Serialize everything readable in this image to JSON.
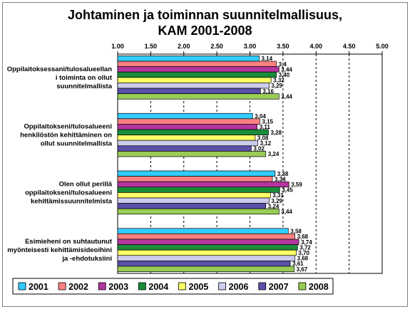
{
  "chart_data": {
    "type": "bar",
    "orientation": "horizontal",
    "title_lines": [
      "Johtaminen ja toiminnan suunnitelmallisuus,",
      "KAM 2001-2008"
    ],
    "categories": [
      [
        "Oppilaitoksessani/tulosalueellan",
        "i toiminta on ollut",
        "suunnitelmallista"
      ],
      [
        "Oppilaitokseni/tulosalueeni",
        "henkilöstön kehittäminen on",
        "ollut suunnitelmallista"
      ],
      [
        "Olen ollut perillä",
        "oppilaitokseni/tulosalueeni",
        "kehittämissuunnitelmista"
      ],
      [
        "Esimieheni on suhtautunut",
        "myönteisesti kehittämisideoihini",
        "ja -ehdotuksiini"
      ]
    ],
    "xlim": [
      1.0,
      5.0
    ],
    "ticks": [
      "1.00",
      "1.50",
      "2.00",
      "2.50",
      "3.00",
      "3.50",
      "4.00",
      "4.50",
      "5.00"
    ],
    "tick_values": [
      1.0,
      1.5,
      2.0,
      2.5,
      3.0,
      3.5,
      4.0,
      4.5,
      5.0
    ],
    "grid": "dashed vertical",
    "legend_position": "bottom",
    "series": [
      {
        "name": "2001",
        "color": "#33ccff",
        "values": [
          3.14,
          3.04,
          3.38,
          3.58
        ],
        "labels": [
          "3,14",
          "3,04",
          "3,38",
          "3,58"
        ]
      },
      {
        "name": "2002",
        "color": "#ff8080",
        "values": [
          3.4,
          3.15,
          3.34,
          3.68
        ],
        "labels": [
          "3,4",
          "3,15",
          "3,34",
          "3,68"
        ]
      },
      {
        "name": "2003",
        "color": "#b4369e",
        "values": [
          3.44,
          3.11,
          3.59,
          3.74
        ],
        "labels": [
          "3,44",
          "3,11",
          "3,59",
          "3,74"
        ]
      },
      {
        "name": "2004",
        "color": "#1a8c3a",
        "values": [
          3.4,
          3.28,
          3.45,
          3.72
        ],
        "labels": [
          "3,40",
          "3,28",
          "3,45",
          "3,72"
        ]
      },
      {
        "name": "2005",
        "color": "#ffff66",
        "values": [
          3.32,
          3.08,
          3.31,
          3.7
        ],
        "labels": [
          "3,32",
          "3,08",
          "3,31",
          "3,70"
        ]
      },
      {
        "name": "2006",
        "color": "#ccccee",
        "values": [
          3.29,
          3.12,
          3.29,
          3.68
        ],
        "labels": [
          "3,29",
          "3,12",
          "3,29",
          "3,68"
        ]
      },
      {
        "name": "2007",
        "color": "#5a50a8",
        "values": [
          3.16,
          3.02,
          3.24,
          3.61
        ],
        "labels": [
          "3,16",
          "3,02",
          "3,24",
          "3,61"
        ]
      },
      {
        "name": "2008",
        "color": "#99cc55",
        "values": [
          3.44,
          3.24,
          3.44,
          3.67
        ],
        "labels": [
          "3,44",
          "3,24",
          "3,44",
          "3,67"
        ]
      }
    ]
  }
}
